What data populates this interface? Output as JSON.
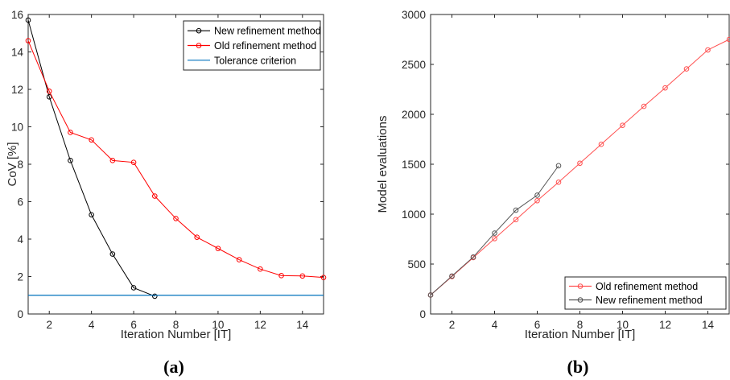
{
  "chart_data": [
    {
      "id": "a",
      "type": "line",
      "panel_label": "(a)",
      "xlabel": "Iteration Number [IT]",
      "ylabel": "CoV [%]",
      "xlim": [
        1,
        15
      ],
      "ylim": [
        0,
        16
      ],
      "xticks": [
        2,
        4,
        6,
        8,
        10,
        12,
        14
      ],
      "yticks": [
        0,
        2,
        4,
        6,
        8,
        10,
        12,
        14,
        16
      ],
      "grid": false,
      "legend_position": "top-right",
      "series": [
        {
          "name": "New refinement method",
          "color": "#000000",
          "marker": "circle",
          "x": [
            1,
            2,
            3,
            4,
            5,
            6,
            7
          ],
          "y": [
            15.7,
            11.6,
            8.2,
            5.3,
            3.2,
            1.4,
            0.95
          ]
        },
        {
          "name": "Old refinement method",
          "color": "#ff0000",
          "marker": "circle",
          "x": [
            1,
            2,
            3,
            4,
            5,
            6,
            7,
            8,
            9,
            10,
            11,
            12,
            13,
            14,
            15
          ],
          "y": [
            14.6,
            11.9,
            9.7,
            9.3,
            8.2,
            8.1,
            6.3,
            5.1,
            4.1,
            3.5,
            2.9,
            2.4,
            2.05,
            2.03,
            1.95
          ]
        },
        {
          "name": "Tolerance criterion",
          "color": "#0072bd",
          "marker": "none",
          "x": [
            1,
            15
          ],
          "y": [
            1,
            1
          ]
        }
      ]
    },
    {
      "id": "b",
      "type": "line",
      "panel_label": "(b)",
      "xlabel": "Iteration Number [IT]",
      "ylabel": "Model evaluations",
      "xlim": [
        1,
        15
      ],
      "ylim": [
        0,
        3000
      ],
      "xticks": [
        2,
        4,
        6,
        8,
        10,
        12,
        14
      ],
      "yticks": [
        0,
        500,
        1000,
        1500,
        2000,
        2500,
        3000
      ],
      "grid": false,
      "legend_position": "bottom-right",
      "series": [
        {
          "name": "Old refinement method",
          "color": "#ff5050",
          "marker": "circle",
          "x": [
            1,
            2,
            3,
            4,
            5,
            6,
            7,
            8,
            9,
            10,
            11,
            12,
            13,
            14,
            15
          ],
          "y": [
            190,
            375,
            565,
            755,
            945,
            1135,
            1320,
            1510,
            1700,
            1890,
            2080,
            2265,
            2455,
            2645,
            2750
          ]
        },
        {
          "name": "New refinement method",
          "color": "#555555",
          "marker": "circle",
          "x": [
            1,
            2,
            3,
            4,
            5,
            6,
            7
          ],
          "y": [
            190,
            380,
            570,
            810,
            1040,
            1190,
            1485
          ]
        }
      ]
    }
  ]
}
